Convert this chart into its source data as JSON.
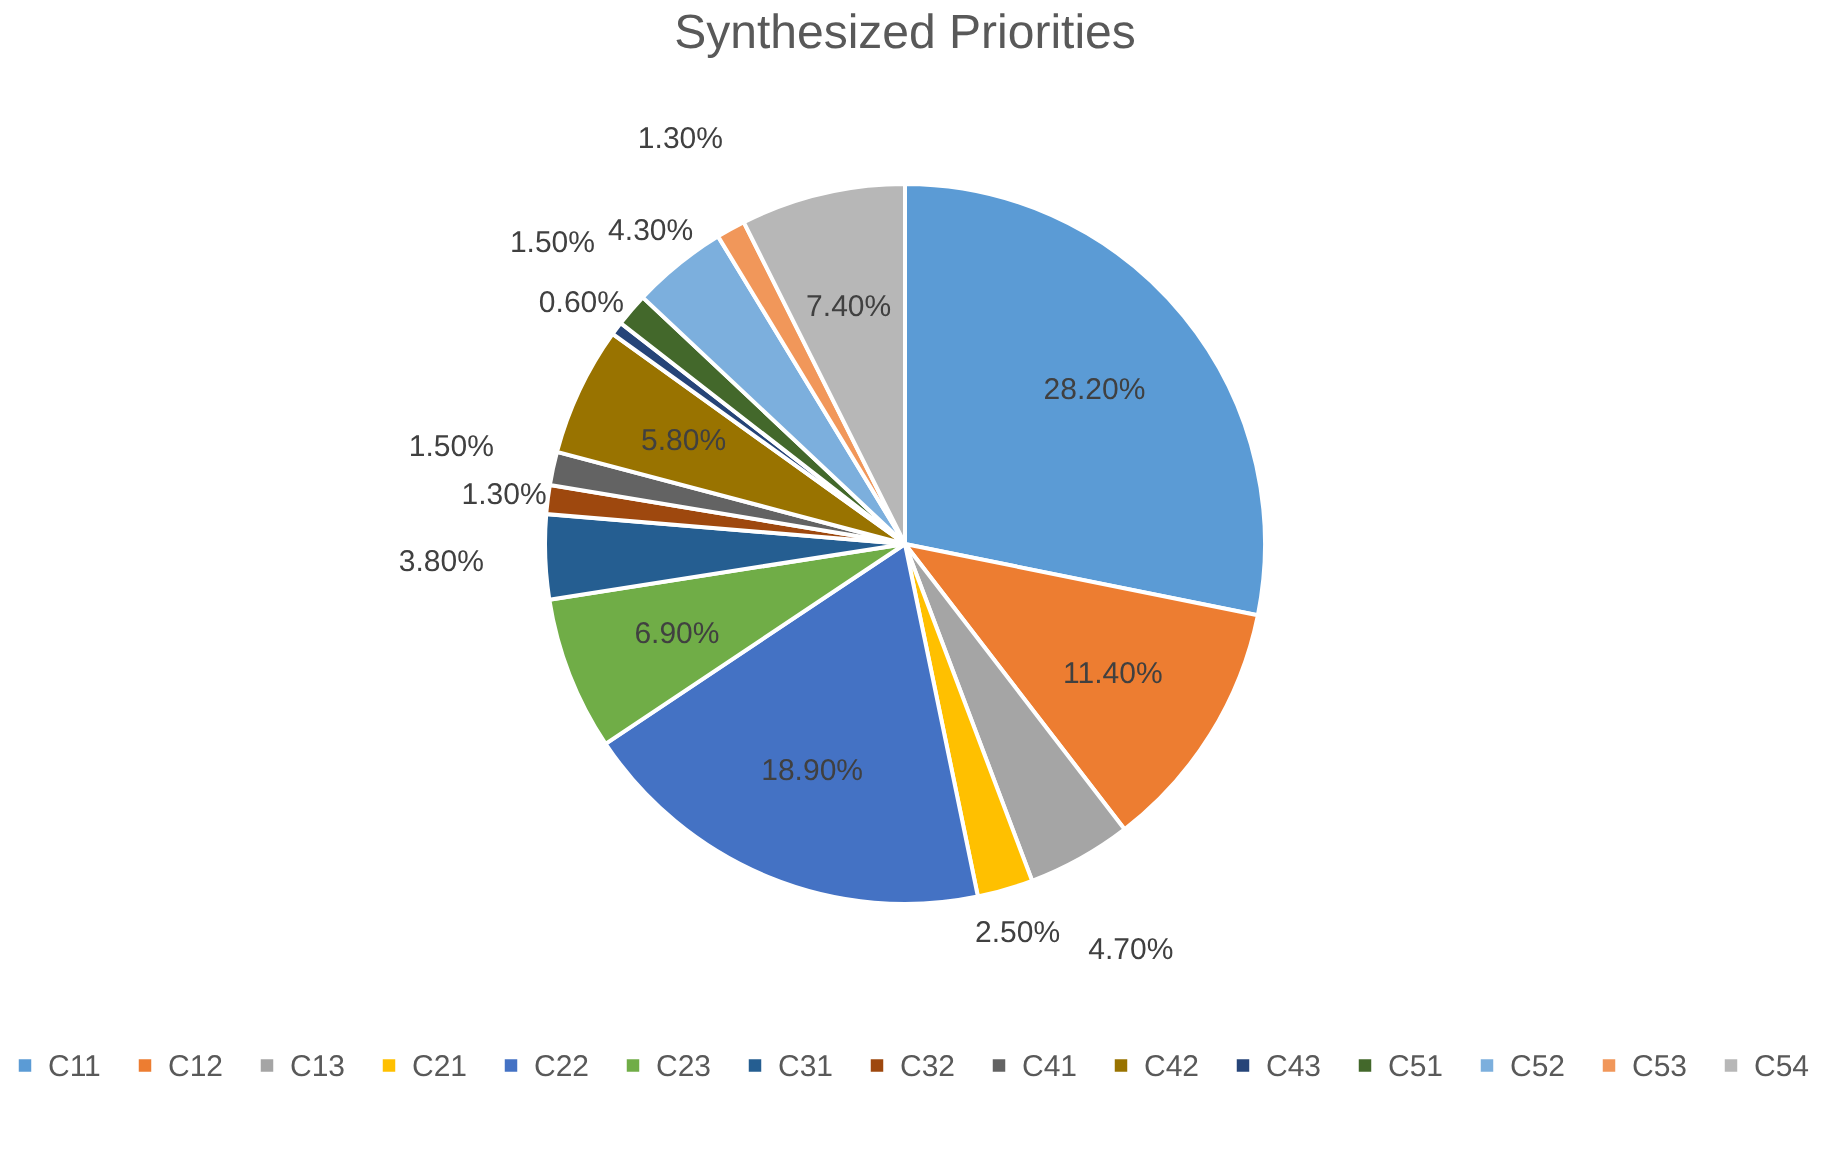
{
  "chart_data": {
    "type": "pie",
    "title": "Synthesized Priorities",
    "categories": [
      "C11",
      "C12",
      "C13",
      "C21",
      "C22",
      "C23",
      "C31",
      "C32",
      "C41",
      "C42",
      "C43",
      "C51",
      "C52",
      "C53",
      "C54"
    ],
    "values": [
      28.2,
      11.4,
      4.7,
      2.5,
      18.9,
      6.9,
      3.8,
      1.3,
      1.5,
      5.8,
      0.6,
      1.5,
      4.3,
      1.3,
      7.4
    ],
    "value_labels": [
      "28.20%",
      "11.40%",
      "4.70%",
      "2.50%",
      "18.90%",
      "6.90%",
      "3.80%",
      "1.30%",
      "1.50%",
      "5.80%",
      "0.60%",
      "1.50%",
      "4.30%",
      "1.30%",
      "7.40%"
    ],
    "colors": [
      "#5b9bd5",
      "#ed7d31",
      "#a5a5a5",
      "#ffc000",
      "#4472c4",
      "#70ad47",
      "#255e91",
      "#9e480e",
      "#636363",
      "#997300",
      "#264478",
      "#43682b",
      "#7cafdd",
      "#f1975a",
      "#b7b7b7"
    ],
    "legend": "bottom"
  }
}
